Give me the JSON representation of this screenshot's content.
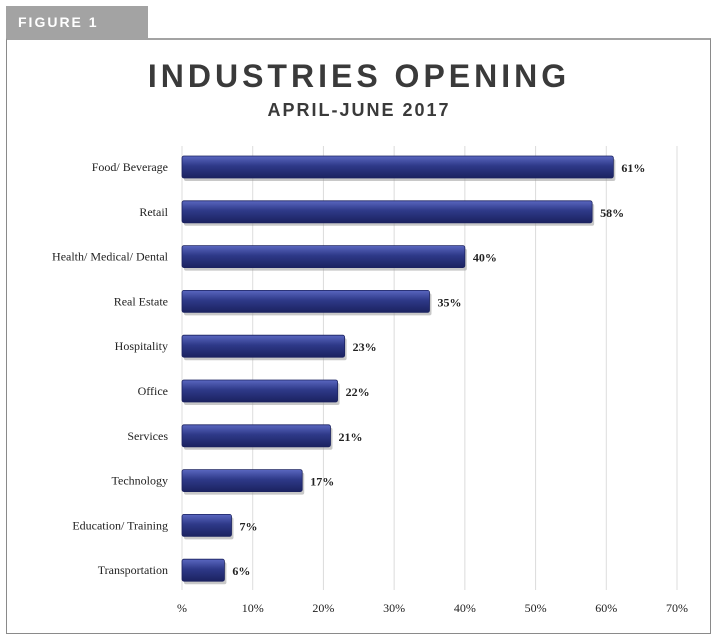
{
  "figure_label": "FIGURE 1",
  "chart_data": {
    "type": "bar",
    "orientation": "horizontal",
    "title": "INDUSTRIES OPENING",
    "subtitle": "APRIL-JUNE 2017",
    "categories": [
      "Food/ Beverage",
      "Retail",
      "Health/ Medical/ Dental",
      "Real Estate",
      "Hospitality",
      "Office",
      "Services",
      "Technology",
      "Education/ Training",
      "Transportation"
    ],
    "values": [
      61,
      58,
      40,
      35,
      23,
      22,
      21,
      17,
      7,
      6
    ],
    "value_labels": [
      "61%",
      "58%",
      "40%",
      "35%",
      "23%",
      "22%",
      "21%",
      "17%",
      "7%",
      "6%"
    ],
    "xlim": [
      0,
      70
    ],
    "x_ticks": [
      0,
      10,
      20,
      30,
      40,
      50,
      60,
      70
    ],
    "x_tick_labels": [
      "%",
      "10%",
      "20%",
      "30%",
      "40%",
      "50%",
      "60%",
      "70%"
    ],
    "grid": true,
    "bar_color": "#2e3988"
  }
}
